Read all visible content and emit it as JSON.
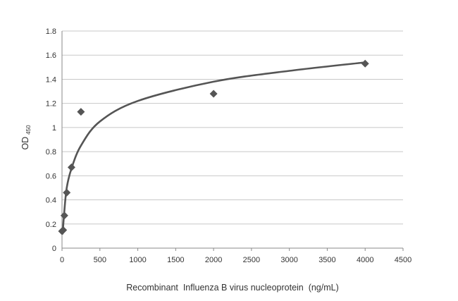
{
  "chart_data": {
    "type": "scatter",
    "xlabel": "Recombinant  Influenza B virus nucleoprotein  (ng/mL)",
    "ylabel": "OD",
    "ylabel_subscript": "450",
    "xlim": [
      0,
      4500
    ],
    "ylim": [
      0,
      1.8
    ],
    "xticks": [
      "0",
      "500",
      "1000",
      "1500",
      "2000",
      "2500",
      "3000",
      "3500",
      "4000",
      "4500"
    ],
    "yticks": [
      "0",
      "0.2",
      "0.4",
      "0.6",
      "0.8",
      "1",
      "1.2",
      "1.4",
      "1.6",
      "1.8"
    ],
    "grid": "horizontal",
    "legend": "none",
    "series": [
      {
        "marker": "diamond",
        "color": "#555555",
        "x": [
          0,
          15.6,
          31.25,
          62.5,
          125,
          250,
          2000,
          4000
        ],
        "y": [
          0.14,
          0.15,
          0.27,
          0.46,
          0.67,
          1.13,
          1.28,
          1.53
        ]
      }
    ],
    "trendline": {
      "type": "logarithmic",
      "color": "#555555",
      "points": [
        [
          8,
          0.12
        ],
        [
          30,
          0.3
        ],
        [
          62.5,
          0.5
        ],
        [
          125,
          0.66
        ],
        [
          250,
          0.85
        ],
        [
          500,
          1.05
        ],
        [
          1000,
          1.22
        ],
        [
          2000,
          1.38
        ],
        [
          3000,
          1.47
        ],
        [
          4000,
          1.54
        ]
      ]
    }
  }
}
